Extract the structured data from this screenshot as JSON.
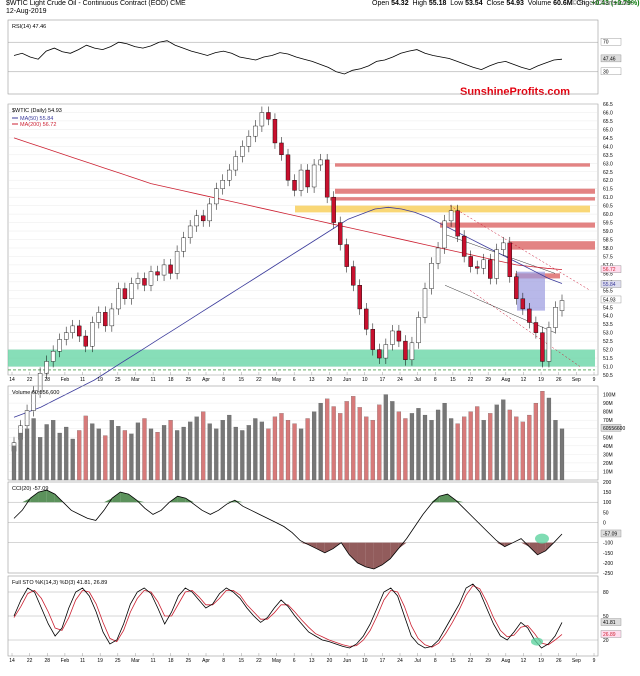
{
  "header": {
    "title": "$WTIC Light Crude Oil - Continuous Contract (EOD) CME",
    "date": "12-Aug-2019",
    "open_label": "Open",
    "open": "54.32",
    "high_label": "High",
    "high": "55.18",
    "low_label": "Low",
    "low": "53.54",
    "close_label": "Close",
    "close": "54.93",
    "volume_label": "Volume",
    "volume": "60.6M",
    "chg_label": "Chg",
    "chg": "+0.43 (+0.79%)",
    "watermark": "© StockCharts.com"
  },
  "brand": "SunshineProfits.com",
  "colors": {
    "up": "#ffffff",
    "down": "#c8102e",
    "ma50": "#3b3b9b",
    "ma200": "#cc2233",
    "green_zone": "#5fd3a0",
    "red_zone": "#d95a5a",
    "yellow_zone": "#f7c948",
    "grid": "#dddddd"
  },
  "chart_data": [
    {
      "type": "line",
      "panel": "rsi",
      "label": "RSI(14) 47.46",
      "levels": [
        70,
        30
      ],
      "last_value": "47.46",
      "axis_labels": [
        "70",
        "47.46",
        "30"
      ],
      "y_range": [
        0,
        100
      ],
      "values": [
        52,
        55,
        50,
        47,
        58,
        62,
        57,
        55,
        60,
        66,
        62,
        60,
        64,
        70,
        68,
        64,
        62,
        65,
        70,
        72,
        66,
        62,
        58,
        55,
        52,
        56,
        58,
        55,
        50,
        48,
        46,
        50,
        52,
        56,
        54,
        50,
        47,
        44,
        40,
        36,
        30,
        27,
        32,
        34,
        38,
        44,
        46,
        50,
        55,
        58,
        60,
        55,
        52,
        50,
        48,
        44,
        40,
        36,
        33,
        38,
        42,
        44,
        40,
        36,
        33,
        38,
        42,
        46,
        47
      ]
    },
    {
      "type": "candlestick",
      "panel": "price",
      "label": "$WTIC (Daily) 54.93",
      "legend": [
        {
          "name": "MA(50) 55.84",
          "color": "#3b3b9b"
        },
        {
          "name": "MA(200) 56.72",
          "color": "#cc2233"
        }
      ],
      "y_range": [
        50.5,
        66.5
      ],
      "y_ticks": [
        "66.5",
        "66.0",
        "65.5",
        "65.0",
        "64.5",
        "64.0",
        "63.5",
        "63.0",
        "62.5",
        "62.0",
        "61.5",
        "61.0",
        "60.5",
        "60.0",
        "59.5",
        "59.0",
        "58.5",
        "58.0",
        "57.5",
        "57.0",
        "56.5",
        "56.0",
        "55.5",
        "55.0",
        "54.5",
        "54.0",
        "53.5",
        "53.0",
        "52.5",
        "52.0",
        "51.5",
        "51.0",
        "50.5"
      ],
      "last_labels": [
        "56.72",
        "55.84",
        "54.93"
      ],
      "closes": [
        46.5,
        47.5,
        48.4,
        49.5,
        50.6,
        51.3,
        51.9,
        52.6,
        53.0,
        53.4,
        52.8,
        52.2,
        53.6,
        54.2,
        53.4,
        54.4,
        55.6,
        55.0,
        55.9,
        56.2,
        55.8,
        56.6,
        56.4,
        57.0,
        56.5,
        57.8,
        58.6,
        59.3,
        59.9,
        59.6,
        60.6,
        61.5,
        62.0,
        62.6,
        63.4,
        64.0,
        64.6,
        65.2,
        66.0,
        65.6,
        64.2,
        63.5,
        62.0,
        61.4,
        62.6,
        61.6,
        62.9,
        63.2,
        61.0,
        59.5,
        58.2,
        56.9,
        55.8,
        54.4,
        53.2,
        52.0,
        51.5,
        52.3,
        53.1,
        52.5,
        51.4,
        52.4,
        53.9,
        55.6,
        57.1,
        58.0,
        59.6,
        60.2,
        58.7,
        57.5,
        56.9,
        56.8,
        57.3,
        56.2,
        57.9,
        58.3,
        56.3,
        55.0,
        54.4,
        53.6,
        53.0,
        51.3,
        53.3,
        54.5,
        54.9
      ],
      "opens": [
        46.0,
        46.7,
        47.5,
        48.4,
        49.5,
        50.6,
        51.3,
        51.9,
        52.6,
        53.0,
        53.4,
        52.8,
        52.2,
        53.6,
        54.2,
        53.4,
        54.4,
        55.6,
        55.0,
        55.9,
        56.2,
        55.8,
        56.6,
        56.4,
        57.0,
        56.5,
        57.8,
        58.6,
        59.3,
        59.9,
        59.6,
        60.6,
        61.5,
        62.0,
        62.6,
        63.4,
        64.0,
        64.6,
        65.2,
        66.0,
        65.6,
        64.2,
        63.5,
        62.0,
        61.4,
        62.6,
        61.6,
        62.9,
        63.2,
        61.0,
        59.5,
        58.2,
        56.9,
        55.8,
        54.4,
        53.2,
        52.0,
        51.5,
        52.3,
        53.1,
        52.5,
        51.4,
        52.4,
        53.9,
        55.6,
        57.1,
        58.0,
        59.6,
        60.2,
        58.7,
        57.5,
        56.9,
        56.8,
        57.3,
        56.2,
        57.9,
        58.3,
        56.3,
        55.0,
        54.4,
        53.6,
        53.0,
        51.3,
        53.3,
        54.3
      ],
      "ma50": [
        48.0,
        48.3,
        48.6,
        49.0,
        49.4,
        49.8,
        50.2,
        50.7,
        51.2,
        51.7,
        52.2,
        52.7,
        53.2,
        53.7,
        54.2,
        54.7,
        55.2,
        55.7,
        56.2,
        56.7,
        57.2,
        57.7,
        58.2,
        58.7,
        59.2,
        59.7,
        60.0,
        60.3,
        60.4,
        60.3,
        60.1,
        59.8,
        59.4,
        59.0,
        58.6,
        58.2,
        57.8,
        57.4,
        57.0,
        56.6,
        56.2,
        55.9
      ],
      "ma200": [
        64.5,
        64.2,
        63.9,
        63.6,
        63.3,
        63.0,
        62.7,
        62.4,
        62.1,
        61.8,
        61.6,
        61.4,
        61.2,
        61.0,
        60.8,
        60.6,
        60.4,
        60.2,
        60.0,
        59.8,
        59.6,
        59.4,
        59.2,
        59.0,
        58.8,
        58.6,
        58.4,
        58.2,
        58.0,
        57.8,
        57.6,
        57.4,
        57.2,
        57.0,
        56.9,
        56.8,
        56.72
      ]
    },
    {
      "type": "bar",
      "panel": "volume",
      "label": "Volume 60,556,600",
      "y_ticks": [
        "100M",
        "90M",
        "80M",
        "70M",
        "60M",
        "50M",
        "40M",
        "30M",
        "20M",
        "10M"
      ],
      "last_label": "60556600",
      "y_range": [
        0,
        110
      ],
      "values": [
        40,
        55,
        60,
        72,
        50,
        65,
        70,
        55,
        62,
        48,
        58,
        75,
        66,
        60,
        52,
        70,
        63,
        58,
        54,
        67,
        72,
        60,
        56,
        64,
        70,
        58,
        62,
        68,
        74,
        80,
        66,
        60,
        70,
        76,
        62,
        58,
        64,
        72,
        68,
        60,
        74,
        78,
        70,
        66,
        60,
        72,
        80,
        90,
        95,
        86,
        78,
        92,
        98,
        85,
        74,
        70,
        88,
        100,
        92,
        80,
        72,
        78,
        84,
        76,
        70,
        82,
        90,
        72,
        66,
        74,
        80,
        86,
        70,
        78,
        88,
        94,
        82,
        74,
        68,
        76,
        90,
        104,
        96,
        70,
        60
      ]
    },
    {
      "type": "line",
      "panel": "cci",
      "label": "CCI(20) -57.09",
      "y_ticks": [
        "200",
        "150",
        "100",
        "50",
        "0",
        "-50",
        "-100",
        "-150",
        "-200",
        "-250"
      ],
      "last_label": "-57.09",
      "y_range": [
        -250,
        200
      ],
      "values": [
        20,
        60,
        120,
        150,
        160,
        140,
        100,
        60,
        40,
        20,
        10,
        60,
        120,
        150,
        140,
        110,
        70,
        40,
        60,
        100,
        130,
        120,
        90,
        60,
        40,
        60,
        90,
        110,
        80,
        60,
        40,
        20,
        0,
        -20,
        -50,
        -90,
        -110,
        -130,
        -150,
        -130,
        -100,
        -160,
        -200,
        -220,
        -230,
        -210,
        -180,
        -130,
        -80,
        -20,
        40,
        90,
        130,
        140,
        110,
        70,
        30,
        -10,
        -50,
        -90,
        -120,
        -100,
        -80,
        -120,
        -160,
        -140,
        -100,
        -57
      ]
    },
    {
      "type": "line",
      "panel": "stochastic",
      "label": "Full STO %K(14,3) %D(3) 41.81, 26.89",
      "series": [
        {
          "name": "%K 41.81",
          "color": "#000000"
        },
        {
          "name": "%D 26.89",
          "color": "#cc2233"
        }
      ],
      "y_ticks": [
        "80",
        "50",
        "20"
      ],
      "last_labels": [
        "41.81",
        "26.89"
      ],
      "y_range": [
        0,
        100
      ],
      "k": [
        50,
        70,
        85,
        80,
        60,
        40,
        25,
        35,
        60,
        80,
        85,
        75,
        55,
        30,
        15,
        20,
        40,
        65,
        80,
        85,
        78,
        60,
        40,
        55,
        75,
        85,
        80,
        70,
        60,
        65,
        78,
        85,
        80,
        72,
        60,
        50,
        42,
        48,
        60,
        70,
        62,
        50,
        40,
        30,
        25,
        20,
        18,
        15,
        12,
        10,
        15,
        25,
        40,
        60,
        80,
        85,
        75,
        50,
        25,
        15,
        10,
        12,
        20,
        35,
        50,
        65,
        85,
        90,
        80,
        60,
        40,
        25,
        20,
        30,
        42,
        35,
        20,
        10,
        15,
        25,
        42
      ],
      "d": [
        48,
        62,
        78,
        82,
        72,
        55,
        35,
        32,
        48,
        70,
        82,
        80,
        65,
        42,
        22,
        18,
        32,
        55,
        72,
        82,
        80,
        68,
        50,
        50,
        65,
        80,
        82,
        74,
        64,
        64,
        72,
        82,
        82,
        76,
        64,
        55,
        46,
        46,
        54,
        64,
        64,
        55,
        45,
        36,
        28,
        24,
        20,
        17,
        14,
        12,
        13,
        20,
        32,
        50,
        70,
        82,
        80,
        62,
        38,
        22,
        14,
        11,
        16,
        28,
        42,
        58,
        76,
        88,
        84,
        68,
        48,
        32,
        24,
        26,
        36,
        38,
        28,
        16,
        14,
        20,
        27
      ],
      "x_ticks": [
        "14",
        "22",
        "28",
        "Feb",
        "11",
        "19",
        "25",
        "Mar",
        "11",
        "18",
        "25",
        "Apr",
        "8",
        "15",
        "22",
        "May",
        "6",
        "13",
        "20",
        "Jun",
        "10",
        "17",
        "24",
        "Jul",
        "8",
        "15",
        "22",
        "29",
        "Aug",
        "12",
        "19",
        "26",
        "Sep",
        "9"
      ]
    }
  ]
}
